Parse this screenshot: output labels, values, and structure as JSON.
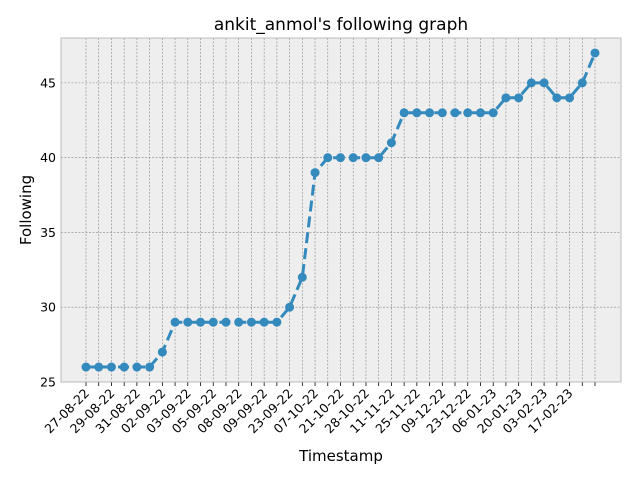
{
  "chart_data": {
    "type": "line",
    "title": "ankit_anmol's following graph",
    "xlabel": "Timestamp",
    "ylabel": "Following",
    "ylim": [
      25,
      48
    ],
    "yticks": [
      25,
      30,
      35,
      40,
      45
    ],
    "grid": true,
    "line_style": "dashed",
    "marker": "circle",
    "colors": {
      "series": "#348ABD",
      "plot_bg": "#EEEEEE",
      "grid": "#888888"
    },
    "xtick_labels": [
      "27-08-22",
      "29-08-22",
      "31-08-22",
      "02-09-22",
      "03-09-22",
      "05-09-22",
      "08-09-22",
      "09-09-22",
      "23-09-22",
      "07-10-22",
      "21-10-22",
      "28-10-22",
      "11-11-22",
      "25-11-22",
      "09-12-22",
      "23-12-22",
      "06-01-23",
      "20-01-23",
      "03-02-23",
      "17-02-23"
    ],
    "series": [
      {
        "values": [
          26,
          26,
          26,
          26,
          26,
          26,
          27,
          29,
          29,
          29,
          29,
          29,
          29,
          29,
          29,
          29,
          30,
          32,
          39,
          40,
          40,
          40,
          40,
          40,
          41,
          43,
          43,
          43,
          43,
          43,
          43,
          43,
          43,
          44,
          44,
          45,
          45,
          44,
          44,
          45,
          47
        ]
      }
    ]
  }
}
